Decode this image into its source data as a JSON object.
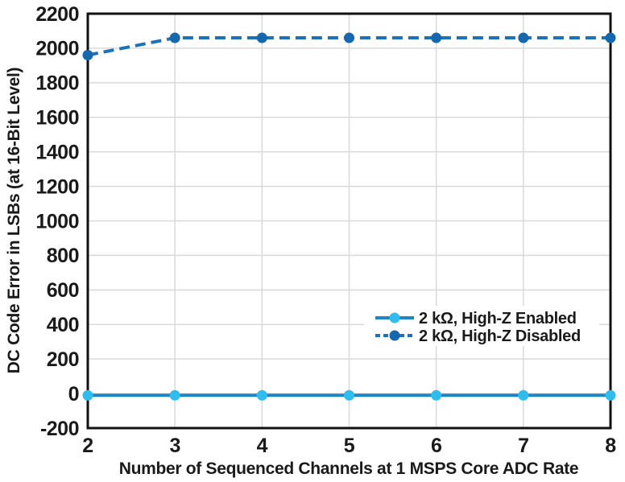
{
  "figure": {
    "background": "#ffffff",
    "text_color": "#1a1a1a",
    "grid_color": "#d9d9d9",
    "axis_color": "#111111"
  },
  "chart_data": {
    "type": "line",
    "title": "",
    "xlabel": "Number of Sequenced Channels at 1 MSPS Core ADC Rate",
    "ylabel": "DC Code Error in LSBs (at 16-Bit Level)",
    "x": [
      2,
      3,
      4,
      5,
      6,
      7,
      8
    ],
    "xlim": [
      2,
      8
    ],
    "ylim": [
      -200,
      2200
    ],
    "x_ticks": [
      2,
      3,
      4,
      5,
      6,
      7,
      8
    ],
    "y_ticks": [
      -200,
      0,
      200,
      400,
      600,
      800,
      1000,
      1200,
      1400,
      1600,
      1800,
      2000,
      2200
    ],
    "grid": true,
    "legend_position": "inside right, lower third",
    "series": [
      {
        "name": "2 kΩ, High-Z Enabled",
        "line_style": "solid",
        "line_color": "#1f86c6",
        "marker": "circle",
        "marker_color": "#31bcee",
        "values": [
          -10,
          -10,
          -10,
          -10,
          -10,
          -10,
          -10
        ]
      },
      {
        "name": "2 kΩ, High-Z Disabled",
        "line_style": "dashed",
        "line_color": "#1b72b8",
        "marker": "circle",
        "marker_color": "#1568ae",
        "values": [
          1960,
          2060,
          2060,
          2060,
          2060,
          2060,
          2060
        ]
      }
    ]
  }
}
